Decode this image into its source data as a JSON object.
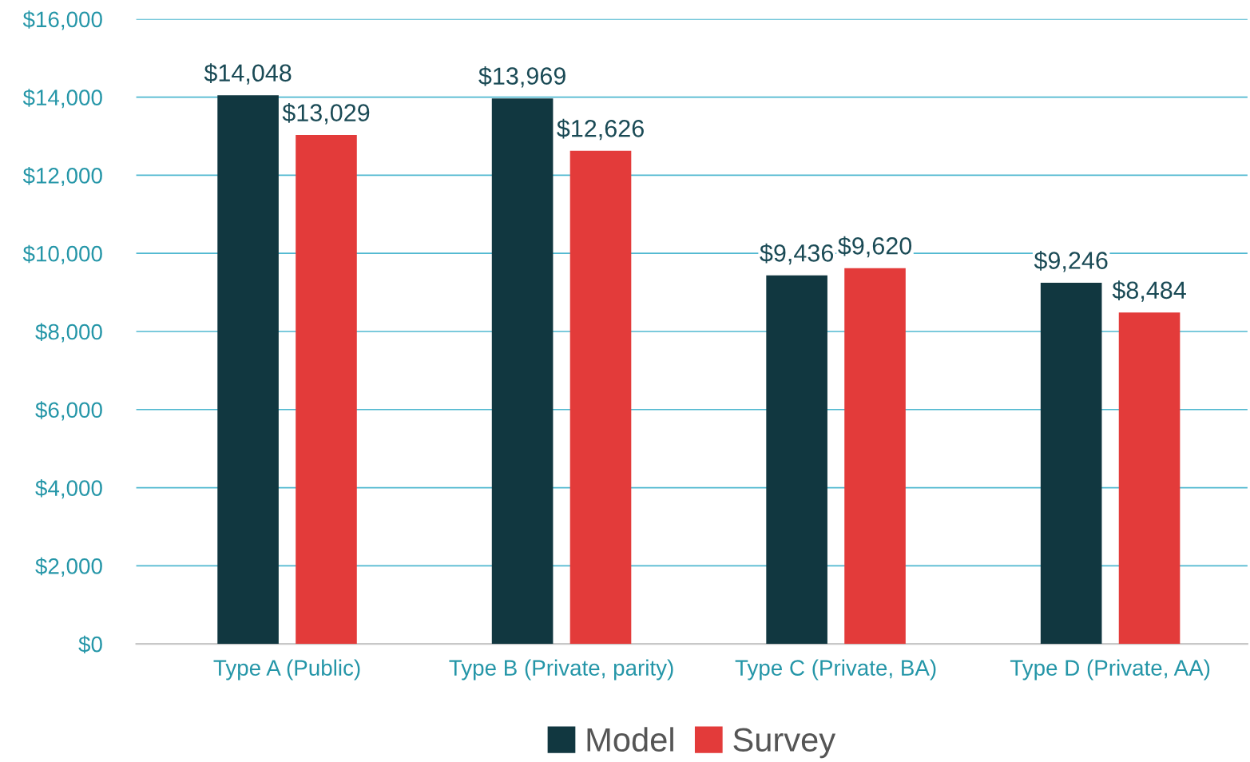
{
  "chart_data": {
    "type": "bar",
    "categories": [
      "Type A (Public)",
      "Type B (Private, parity)",
      "Type C (Private, BA)",
      "Type D (Private, AA)"
    ],
    "series": [
      {
        "name": "Model",
        "color": "#113740",
        "values": [
          14048,
          13969,
          9436,
          9246
        ],
        "value_labels": [
          "$14,048",
          "$13,969",
          "$9,436",
          "$9,246"
        ]
      },
      {
        "name": "Survey",
        "color": "#e33b3a",
        "values": [
          13029,
          12626,
          9620,
          8484
        ],
        "value_labels": [
          "$13,029",
          "$12,626",
          "$9,620",
          "$8,484"
        ]
      }
    ],
    "ylim": [
      0,
      16000
    ],
    "yticks": [
      {
        "value": 0,
        "label": "$0"
      },
      {
        "value": 2000,
        "label": "$2,000"
      },
      {
        "value": 4000,
        "label": "$4,000"
      },
      {
        "value": 6000,
        "label": "$6,000"
      },
      {
        "value": 8000,
        "label": "$8,000"
      },
      {
        "value": 10000,
        "label": "$10,000"
      },
      {
        "value": 12000,
        "label": "$12,000"
      },
      {
        "value": 14000,
        "label": "$14,000"
      },
      {
        "value": 16000,
        "label": "$16,000"
      }
    ],
    "grid": "y",
    "legend": "bottom"
  }
}
